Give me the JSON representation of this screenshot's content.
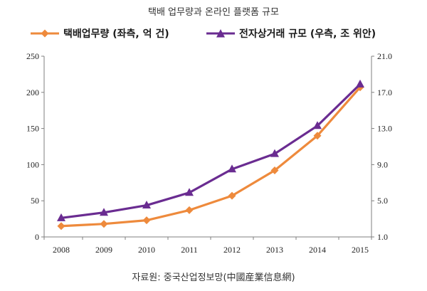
{
  "chart_data": {
    "type": "line",
    "title": "택배 업무량과 온라인 플랫폼 규모",
    "source": "자료원: 중국산업정보망(中國産業信息網)",
    "categories": [
      "2008",
      "2009",
      "2010",
      "2011",
      "2012",
      "2013",
      "2014",
      "2015"
    ],
    "left_axis": {
      "ylim": [
        0,
        250
      ],
      "ticks": [
        0,
        50,
        100,
        150,
        200,
        250
      ]
    },
    "right_axis": {
      "ylim": [
        1.0,
        21.0
      ],
      "ticks": [
        "1.0",
        "5.0",
        "9.0",
        "13.0",
        "17.0",
        "21.0"
      ]
    },
    "grid": false,
    "legend_position": "top",
    "series": [
      {
        "name": "택배업무량 (좌측, 억 건)",
        "axis": "left",
        "color": "#ee8a3c",
        "marker": "diamond",
        "values": [
          15,
          18,
          23,
          37,
          57,
          92,
          140,
          207
        ]
      },
      {
        "name": "전자상거래 규모 (우측, 조 위안)",
        "axis": "right",
        "color": "#6a2c91",
        "marker": "triangle",
        "values": [
          3.1,
          3.7,
          4.5,
          5.9,
          8.5,
          10.2,
          13.3,
          17.9
        ]
      }
    ]
  }
}
